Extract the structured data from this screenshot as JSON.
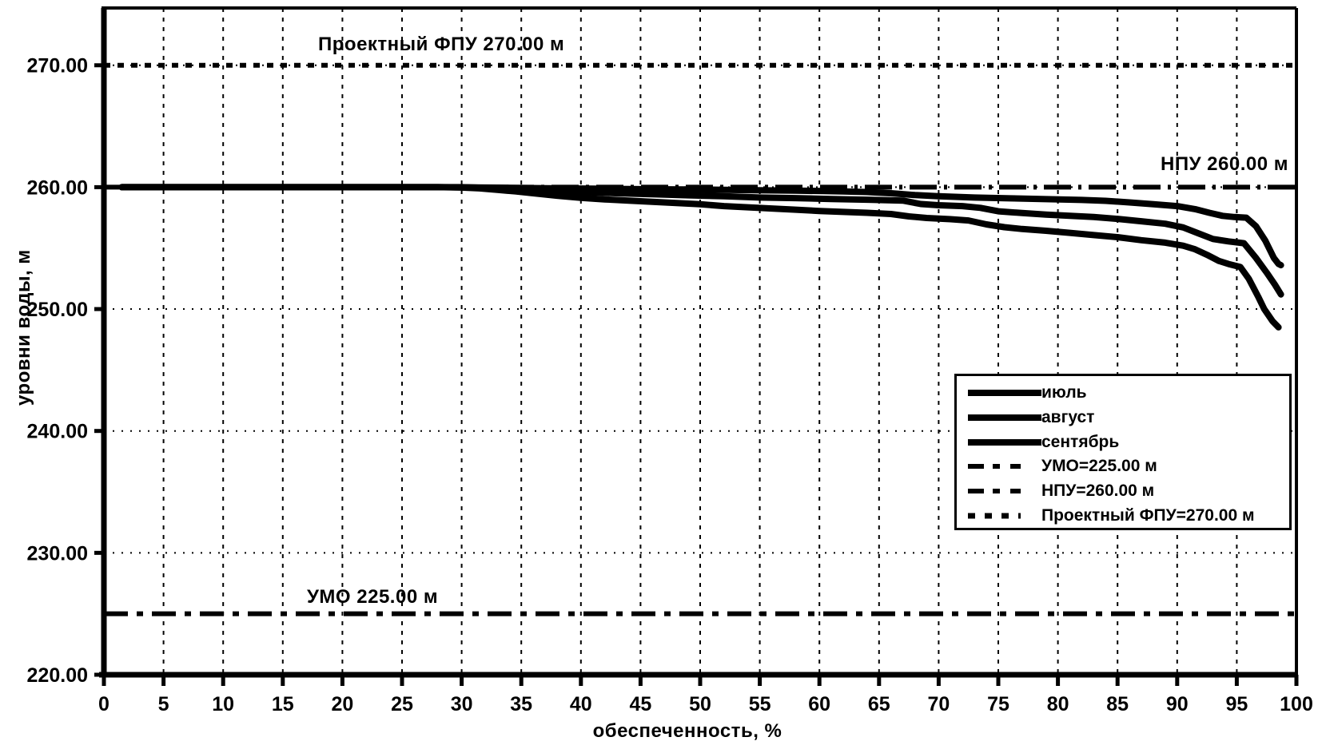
{
  "chart_data": {
    "type": "line",
    "title": "",
    "xlabel": "обеспеченность, %",
    "ylabel": "уровни воды, м",
    "xlim": [
      0,
      100
    ],
    "ylim": [
      220,
      274.7
    ],
    "grid": {
      "vertical": "dashed, every 5 %",
      "horizontal": "dotted, every 10 m"
    },
    "x_ticks": [
      0,
      5,
      10,
      15,
      20,
      25,
      30,
      35,
      40,
      45,
      50,
      55,
      60,
      65,
      70,
      75,
      80,
      85,
      90,
      95,
      100
    ],
    "y_ticks": [
      {
        "value": 220,
        "label": "220.00"
      },
      {
        "value": 230,
        "label": "230.00"
      },
      {
        "value": 240,
        "label": "240.00"
      },
      {
        "value": 250,
        "label": "250.00"
      },
      {
        "value": 260,
        "label": "260.00"
      },
      {
        "value": 270,
        "label": "270.00"
      }
    ],
    "series": [
      {
        "name": "июль",
        "style": "solid",
        "points": [
          [
            1.5,
            260
          ],
          [
            10,
            260
          ],
          [
            20,
            260
          ],
          [
            28,
            260
          ],
          [
            31,
            259.98
          ],
          [
            34,
            259.95
          ],
          [
            38,
            259.9
          ],
          [
            42,
            259.87
          ],
          [
            46,
            259.83
          ],
          [
            50,
            259.8
          ],
          [
            54,
            259.76
          ],
          [
            58,
            259.72
          ],
          [
            62,
            259.65
          ],
          [
            64,
            259.6
          ],
          [
            66,
            259.5
          ],
          [
            68,
            259.35
          ],
          [
            70,
            259.25
          ],
          [
            73,
            259.15
          ],
          [
            76,
            259.08
          ],
          [
            79,
            259.02
          ],
          [
            82,
            258.95
          ],
          [
            84,
            258.88
          ],
          [
            86,
            258.75
          ],
          [
            88,
            258.6
          ],
          [
            90,
            258.45
          ],
          [
            91.5,
            258.2
          ],
          [
            92.7,
            257.9
          ],
          [
            93.8,
            257.65
          ],
          [
            94.8,
            257.55
          ],
          [
            95.8,
            257.5
          ],
          [
            96.6,
            256.8
          ],
          [
            97.4,
            255.6
          ],
          [
            98.1,
            254.2
          ],
          [
            98.5,
            253.7
          ],
          [
            98.7,
            253.6
          ]
        ]
      },
      {
        "name": "август",
        "style": "solid",
        "points": [
          [
            1.5,
            260
          ],
          [
            10,
            260
          ],
          [
            20,
            260
          ],
          [
            30,
            260
          ],
          [
            32,
            259.95
          ],
          [
            34,
            259.88
          ],
          [
            36,
            259.78
          ],
          [
            38,
            259.68
          ],
          [
            40,
            259.6
          ],
          [
            43,
            259.5
          ],
          [
            46,
            259.42
          ],
          [
            49,
            259.33
          ],
          [
            52,
            259.25
          ],
          [
            55,
            259.15
          ],
          [
            58,
            259.1
          ],
          [
            61,
            259.03
          ],
          [
            64,
            258.97
          ],
          [
            67,
            258.9
          ],
          [
            68.5,
            258.62
          ],
          [
            70,
            258.52
          ],
          [
            72,
            258.45
          ],
          [
            73.5,
            258.3
          ],
          [
            75,
            258.02
          ],
          [
            77,
            257.88
          ],
          [
            79,
            257.75
          ],
          [
            81,
            257.65
          ],
          [
            83,
            257.55
          ],
          [
            85,
            257.4
          ],
          [
            87,
            257.2
          ],
          [
            89,
            257.0
          ],
          [
            90.5,
            256.7
          ],
          [
            91.8,
            256.2
          ],
          [
            93,
            255.75
          ],
          [
            94.3,
            255.55
          ],
          [
            95.6,
            255.4
          ],
          [
            96.6,
            254.2
          ],
          [
            97.5,
            253.0
          ],
          [
            98.2,
            252.0
          ],
          [
            98.7,
            251.2
          ]
        ]
      },
      {
        "name": "сентябрь",
        "style": "solid",
        "points": [
          [
            1.5,
            260
          ],
          [
            10,
            260
          ],
          [
            20,
            260
          ],
          [
            28,
            260
          ],
          [
            30,
            259.97
          ],
          [
            31.5,
            259.9
          ],
          [
            33,
            259.78
          ],
          [
            34.5,
            259.65
          ],
          [
            36,
            259.5
          ],
          [
            38,
            259.3
          ],
          [
            40,
            259.12
          ],
          [
            42,
            259.0
          ],
          [
            44,
            258.9
          ],
          [
            46,
            258.8
          ],
          [
            48,
            258.7
          ],
          [
            50,
            258.6
          ],
          [
            52,
            258.45
          ],
          [
            54,
            258.35
          ],
          [
            56,
            258.25
          ],
          [
            58,
            258.15
          ],
          [
            60,
            258.05
          ],
          [
            62,
            257.97
          ],
          [
            64,
            257.9
          ],
          [
            66,
            257.8
          ],
          [
            67.5,
            257.6
          ],
          [
            69,
            257.47
          ],
          [
            71,
            257.37
          ],
          [
            72.5,
            257.27
          ],
          [
            74,
            256.95
          ],
          [
            75.5,
            256.72
          ],
          [
            77,
            256.57
          ],
          [
            79,
            256.42
          ],
          [
            81,
            256.25
          ],
          [
            83,
            256.07
          ],
          [
            85,
            255.9
          ],
          [
            87,
            255.65
          ],
          [
            89,
            255.45
          ],
          [
            90.5,
            255.2
          ],
          [
            91.5,
            254.9
          ],
          [
            92.5,
            254.45
          ],
          [
            93.5,
            253.95
          ],
          [
            94.3,
            253.7
          ],
          [
            95.3,
            253.45
          ],
          [
            96,
            252.5
          ],
          [
            96.8,
            251.0
          ],
          [
            97.3,
            250.0
          ],
          [
            98,
            249.0
          ],
          [
            98.5,
            248.5
          ]
        ]
      }
    ],
    "reference_lines": [
      {
        "id": "fpu",
        "label": "Проектный ФПУ 270.00 м",
        "value": 270.0,
        "style": "bold-dotted"
      },
      {
        "id": "npu",
        "label": "НПУ 260.00 м",
        "value": 260.0,
        "style": "dash-dot"
      },
      {
        "id": "umo",
        "label": "УМО 225.00 м",
        "value": 225.0,
        "style": "dash-dot"
      }
    ],
    "legend": {
      "position": "middle-right",
      "entries": [
        {
          "label": "июль",
          "style": "solid"
        },
        {
          "label": "август",
          "style": "solid"
        },
        {
          "label": "сентябрь",
          "style": "solid"
        },
        {
          "label": "УМО=225.00 м",
          "style": "dash-dot"
        },
        {
          "label": "НПУ=260.00 м",
          "style": "dash-dot"
        },
        {
          "label": "Проектный ФПУ=270.00 м",
          "style": "bold-dotted"
        }
      ]
    }
  },
  "colors": {
    "ink": "#000000",
    "background": "#ffffff"
  }
}
